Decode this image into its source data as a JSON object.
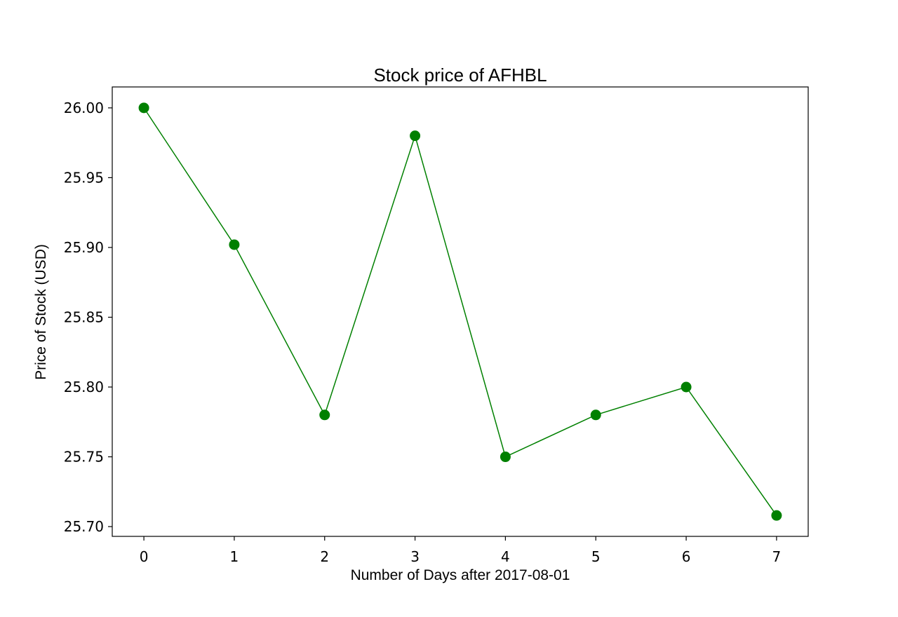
{
  "chart_data": {
    "type": "line",
    "title": "Stock price of AFHBL",
    "xlabel": "Number of Days after 2017-08-01",
    "ylabel": "Price of Stock (USD)",
    "x": [
      0,
      1,
      2,
      3,
      4,
      5,
      6,
      7
    ],
    "series": [
      {
        "values": [
          26.0,
          25.902,
          25.78,
          25.98,
          25.75,
          25.78,
          25.8,
          25.708
        ]
      }
    ],
    "xlim": [
      -0.35,
      7.35
    ],
    "ylim": [
      25.693,
      26.015
    ],
    "xticks": [
      0,
      1,
      2,
      3,
      4,
      5,
      6,
      7
    ],
    "xtick_labels": [
      "0",
      "1",
      "2",
      "3",
      "4",
      "5",
      "6",
      "7"
    ],
    "yticks": [
      25.7,
      25.75,
      25.8,
      25.85,
      25.9,
      25.95,
      26.0
    ],
    "ytick_labels": [
      "25.70",
      "25.75",
      "25.80",
      "25.85",
      "25.90",
      "25.95",
      "26.00"
    ],
    "grid": false,
    "line_color": "#008000",
    "marker": "circle"
  }
}
